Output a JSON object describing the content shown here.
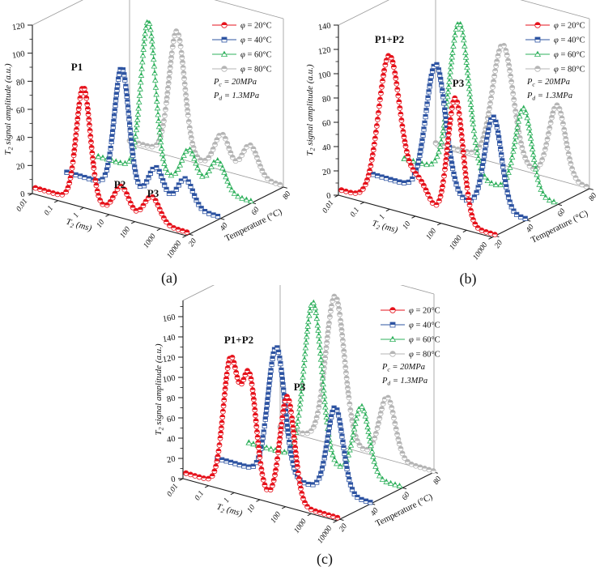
{
  "figure": {
    "captions": {
      "a": "(a)",
      "b": "(b)",
      "c": "(c)"
    }
  },
  "series_colors": {
    "red": "#e6131c",
    "blue": "#2e54a2",
    "green": "#2fb05c",
    "gray": "#b5b5b5"
  },
  "chart_data": [
    {
      "type": "line",
      "projection": "3d-waterfall",
      "panel": "a",
      "title": "(a)",
      "xlabel": "T_2_ (ms)",
      "xscale": "log",
      "xrange_ms": [
        0.01,
        10000
      ],
      "xticks": [
        "0.01",
        "0.1",
        "1",
        "10",
        "100",
        "1000",
        "10000"
      ],
      "ylabel": "Temperature (°C)",
      "yticks": [
        20,
        40,
        60,
        80
      ],
      "zlabel": "T_2_ signal amplitude (a.u.)",
      "zticks": [
        0,
        20,
        40,
        60,
        80,
        100,
        120
      ],
      "z_axis_max": 120,
      "conditions": [
        "P_c_ = 20MPa",
        "P_d_ = 1.3MPa"
      ],
      "annotations": [
        {
          "text": "P1",
          "px": [
            95,
            87
          ]
        },
        {
          "text": "P2",
          "px": [
            148,
            232
          ]
        },
        {
          "text": "P3",
          "px": [
            189,
            243
          ]
        }
      ],
      "series": [
        {
          "name": "φ = 20°C",
          "temperature_C": 20,
          "color_key": "red",
          "marker": "circle",
          "baseline_start": 3,
          "baseline_end": 1,
          "peaks": [
            {
              "T2_ms": 0.75,
              "sigma_dec": 0.27,
              "amp": 82
            },
            {
              "T2_ms": 23,
              "sigma_dec": 0.28,
              "amp": 19
            },
            {
              "T2_ms": 350,
              "sigma_dec": 0.3,
              "amp": 18
            }
          ]
        },
        {
          "name": "φ = 40°C",
          "temperature_C": 40,
          "color_key": "blue",
          "marker": "square",
          "baseline_start": 3,
          "baseline_end": 1,
          "peaks": [
            {
              "T2_ms": 1.4,
              "sigma_dec": 0.28,
              "amp": 86
            },
            {
              "T2_ms": 30,
              "sigma_dec": 0.28,
              "amp": 22
            },
            {
              "T2_ms": 420,
              "sigma_dec": 0.3,
              "amp": 20
            }
          ]
        },
        {
          "name": "φ = 60°C",
          "temperature_C": 60,
          "color_key": "green",
          "marker": "triangle",
          "baseline_start": 3,
          "baseline_end": 1,
          "peaks": [
            {
              "T2_ms": 0.9,
              "sigma_dec": 0.28,
              "amp": 107
            },
            {
              "T2_ms": 35,
              "sigma_dec": 0.28,
              "amp": 24
            },
            {
              "T2_ms": 450,
              "sigma_dec": 0.3,
              "amp": 22
            }
          ]
        },
        {
          "name": "φ = 80°C",
          "temperature_C": 80,
          "color_key": "gray",
          "marker": "circle",
          "baseline_start": 3,
          "baseline_end": 1,
          "peaks": [
            {
              "T2_ms": 0.7,
              "sigma_dec": 0.3,
              "amp": 88
            },
            {
              "T2_ms": 40,
              "sigma_dec": 0.28,
              "amp": 24
            },
            {
              "T2_ms": 500,
              "sigma_dec": 0.3,
              "amp": 22
            }
          ]
        }
      ]
    },
    {
      "type": "line",
      "projection": "3d-waterfall",
      "panel": "b",
      "title": "(b)",
      "xlabel": "T_2_ (ms)",
      "xscale": "log",
      "xrange_ms": [
        0.01,
        10000
      ],
      "xticks": [
        "0.01",
        "0.1",
        "1",
        "10",
        "100",
        "1000",
        "10000"
      ],
      "ylabel": "Temperature (°C)",
      "yticks": [
        20,
        40,
        60,
        80
      ],
      "zlabel": "T_2_ signal amplitude (a.u.)",
      "zticks": [
        0,
        20,
        40,
        60,
        80,
        100,
        120,
        140
      ],
      "z_axis_max": 140,
      "conditions": [
        "P_c_ = 20MPa",
        "P_d_ = 1.3MPa"
      ],
      "annotations": [
        {
          "text": "P1+P2",
          "px": [
            108,
            53
          ]
        },
        {
          "text": "P3",
          "px": [
            193,
            107
          ]
        }
      ],
      "series": [
        {
          "name": "φ = 20°C",
          "temperature_C": 20,
          "color_key": "red",
          "marker": "circle",
          "baseline_start": 3,
          "baseline_end": 1,
          "peaks": [
            {
              "T2_ms": 0.75,
              "sigma_dec": 0.42,
              "amp": 122
            },
            {
              "T2_ms": 10,
              "sigma_dec": 0.4,
              "amp": 26
            },
            {
              "T2_ms": 280,
              "sigma_dec": 0.3,
              "amp": 103
            }
          ]
        },
        {
          "name": "φ = 40°C",
          "temperature_C": 40,
          "color_key": "blue",
          "marker": "square",
          "baseline_start": 3,
          "baseline_end": 1,
          "peaks": [
            {
              "T2_ms": 2.9,
              "sigma_dec": 0.38,
              "amp": 106
            },
            {
              "T2_ms": 500,
              "sigma_dec": 0.32,
              "amp": 76
            }
          ]
        },
        {
          "name": "φ = 60°C",
          "temperature_C": 60,
          "color_key": "green",
          "marker": "triangle",
          "baseline_start": 3,
          "baseline_end": 1,
          "peaks": [
            {
              "T2_ms": 1.4,
              "sigma_dec": 0.38,
              "amp": 125
            },
            {
              "T2_ms": 450,
              "sigma_dec": 0.32,
              "amp": 70
            }
          ]
        },
        {
          "name": "φ = 80°C",
          "temperature_C": 80,
          "color_key": "gray",
          "marker": "circle",
          "baseline_start": 3,
          "baseline_end": 1,
          "peaks": [
            {
              "T2_ms": 4.2,
              "sigma_dec": 0.4,
              "amp": 97
            },
            {
              "T2_ms": 550,
              "sigma_dec": 0.32,
              "amp": 60
            }
          ]
        }
      ]
    },
    {
      "type": "line",
      "projection": "3d-waterfall",
      "panel": "c",
      "title": "(c)",
      "xlabel": "T_2_ (ms)",
      "xscale": "log",
      "xrange_ms": [
        0.01,
        10000
      ],
      "xticks": [
        "0.01",
        "0.1",
        "1",
        "10",
        "100",
        "1000",
        "10000"
      ],
      "ylabel": "Temperature (°C)",
      "yticks": [
        20,
        40,
        60,
        80
      ],
      "zlabel": "T_2_ signal amplitude (a.u.)",
      "zticks": [
        0,
        20,
        40,
        60,
        80,
        100,
        120,
        140,
        160
      ],
      "z_axis_max": 176,
      "conditions": [
        "P_c_ = 20MPa",
        "P_d_ = 1.3MPa"
      ],
      "annotations": [
        {
          "text": "P1+P2",
          "px": [
            109,
            72
          ]
        },
        {
          "text": "P3",
          "px": [
            184,
            130
          ]
        }
      ],
      "series": [
        {
          "name": "φ = 20°C",
          "temperature_C": 20,
          "color_key": "red",
          "marker": "circle",
          "baseline_start": 4,
          "baseline_end": 1,
          "peaks": [
            {
              "T2_ms": 0.55,
              "sigma_dec": 0.28,
              "amp": 124
            },
            {
              "T2_ms": 2.9,
              "sigma_dec": 0.28,
              "amp": 114
            },
            {
              "T2_ms": 90,
              "sigma_dec": 0.28,
              "amp": 105
            }
          ]
        },
        {
          "name": "φ = 40°C",
          "temperature_C": 40,
          "color_key": "blue",
          "marker": "square",
          "baseline_start": 3,
          "baseline_end": 1,
          "peaks": [
            {
              "T2_ms": 2.0,
              "sigma_dec": 0.32,
              "amp": 127
            },
            {
              "T2_ms": 400,
              "sigma_dec": 0.3,
              "amp": 84
            }
          ]
        },
        {
          "name": "φ = 60°C",
          "temperature_C": 60,
          "color_key": "green",
          "marker": "triangle",
          "baseline_start": 3,
          "baseline_end": 1,
          "peaks": [
            {
              "T2_ms": 3.2,
              "sigma_dec": 0.34,
              "amp": 157
            },
            {
              "T2_ms": 250,
              "sigma_dec": 0.3,
              "amp": 68
            }
          ]
        },
        {
          "name": "φ = 80°C",
          "temperature_C": 80,
          "color_key": "gray",
          "marker": "circle",
          "baseline_start": 3,
          "baseline_end": 1,
          "peaks": [
            {
              "T2_ms": 1.4,
              "sigma_dec": 0.36,
              "amp": 145
            },
            {
              "T2_ms": 150,
              "sigma_dec": 0.3,
              "amp": 60
            }
          ]
        }
      ]
    }
  ]
}
